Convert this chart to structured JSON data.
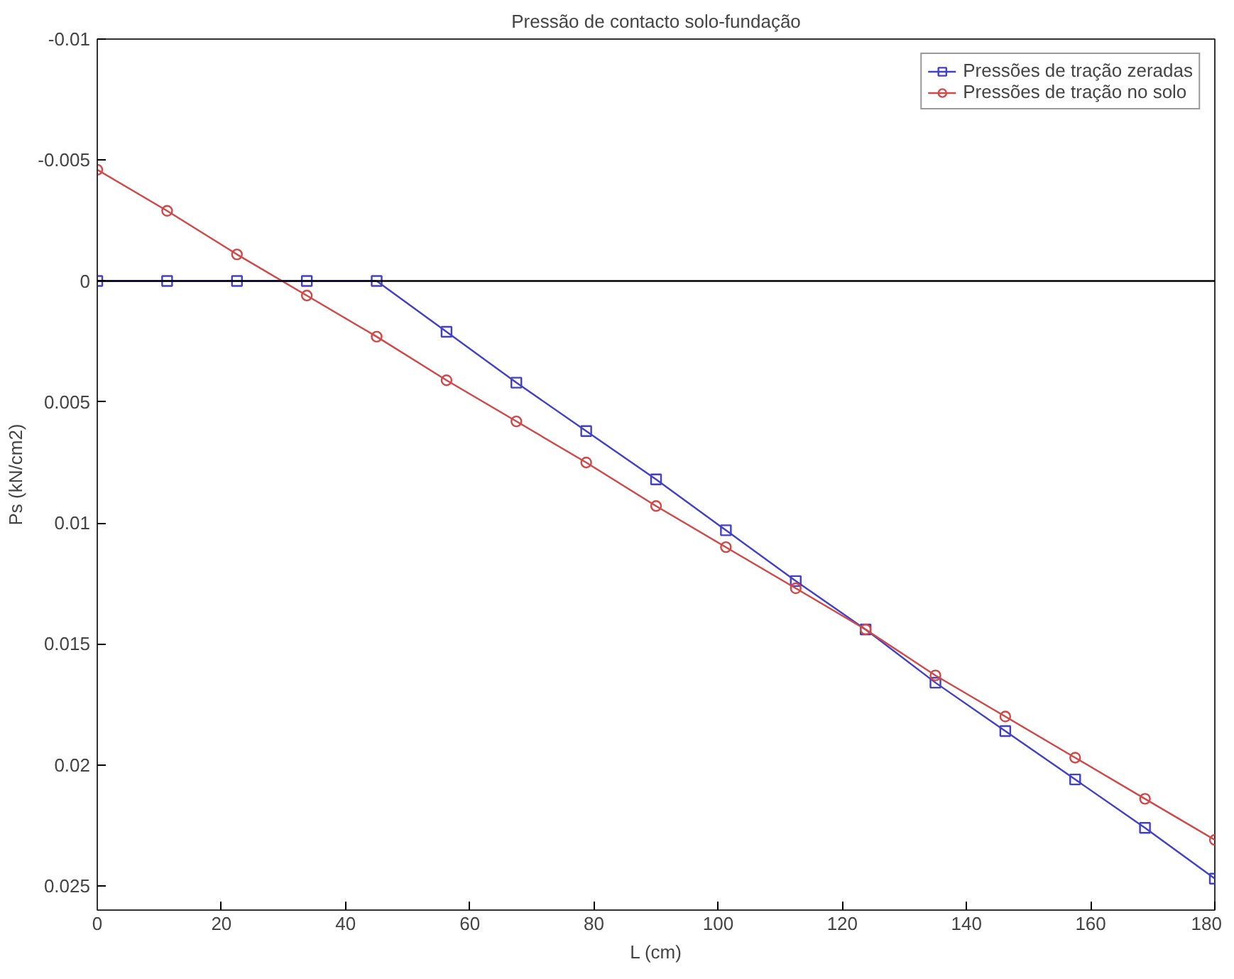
{
  "chart_data": {
    "type": "line",
    "title": "Pressão de contacto solo-fundação",
    "xlabel": "L (cm)",
    "ylabel": "Ps (kN/cm2)",
    "x": [
      0,
      11.25,
      22.5,
      33.75,
      45,
      56.25,
      67.5,
      78.75,
      90,
      101.25,
      112.5,
      123.75,
      135,
      146.25,
      157.5,
      168.75,
      180
    ],
    "series": [
      {
        "name": "Pressões de tração zeradas",
        "color": "#4040c8",
        "marker": "square",
        "values": [
          0,
          0,
          0,
          0,
          0,
          0.0021,
          0.0042,
          0.0062,
          0.0082,
          0.0103,
          0.0124,
          0.0144,
          0.0166,
          0.0186,
          0.0206,
          0.0226,
          0.0247
        ]
      },
      {
        "name": "Pressões de tração no solo",
        "color": "#d04848",
        "marker": "circle",
        "values": [
          -0.0046,
          -0.0029,
          -0.0011,
          0.0006,
          0.0023,
          0.0041,
          0.0058,
          0.0075,
          0.0093,
          0.011,
          0.0127,
          0.0144,
          0.0163,
          0.018,
          0.0197,
          0.0214,
          0.0231
        ]
      }
    ],
    "xlim": [
      0,
      180
    ],
    "xticks": [
      0,
      20,
      40,
      60,
      80,
      100,
      120,
      140,
      160,
      180
    ],
    "ylim": [
      0.026,
      -0.01
    ],
    "yticks": [
      -0.01,
      -0.005,
      0,
      0.005,
      0.01,
      0.015,
      0.02,
      0.025
    ],
    "ref_lines": [
      {
        "axis": "y",
        "value": 0,
        "label": null,
        "color": "#000000"
      }
    ],
    "grid": false,
    "legend": "top right",
    "line_style": "solid"
  }
}
